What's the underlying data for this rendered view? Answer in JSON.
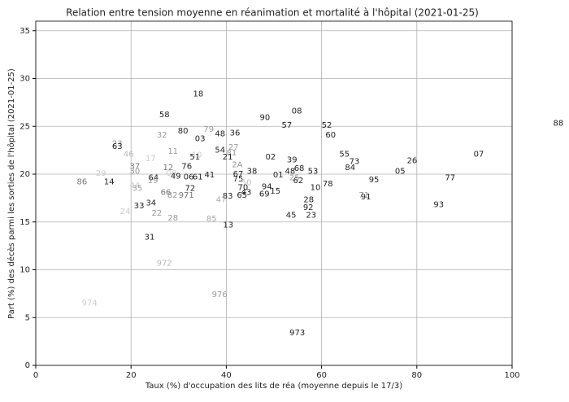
{
  "chart_data": {
    "type": "scatter",
    "title": "Relation entre tension moyenne en réanimation et mortalité à l'hôpital (2021-01-25)",
    "x_label": "Taux (%) d'occupation des lits de réa (moyenne depuis le 17/3)",
    "y_label": "Part (%) des décès parmi les sorties de l'hôpital (2021-01-25)",
    "xlim": [
      0,
      100
    ],
    "ylim": [
      0,
      36
    ],
    "xticks": [
      0,
      20,
      40,
      60,
      80,
      100
    ],
    "yticks": [
      0,
      5,
      10,
      15,
      20,
      25,
      30,
      35
    ],
    "grid": true,
    "labels": [
      "88",
      "18",
      "58",
      "08",
      "90",
      "57",
      "52",
      "60",
      "80",
      "32",
      "79",
      "48",
      "36",
      "03",
      "23",
      "63",
      "46",
      "17",
      "11",
      "54",
      "81",
      "27",
      "10",
      "51",
      "21",
      "02",
      "39",
      "55",
      "73",
      "26",
      "07",
      "2A",
      "37",
      "12",
      "76",
      "84",
      "05",
      "29",
      "30",
      "09",
      "38",
      "48",
      "68",
      "53",
      "64",
      "49",
      "06",
      "61",
      "41",
      "67",
      "01",
      "95",
      "77",
      "86",
      "14",
      "19",
      "75",
      "25",
      "62",
      "78",
      "44",
      "35",
      "50",
      "70",
      "94",
      "10",
      "72",
      "66",
      "82",
      "971",
      "83",
      "65",
      "43",
      "69",
      "15",
      "71",
      "91",
      "47",
      "28",
      "34",
      "33",
      "92",
      "93",
      "24",
      "22",
      "28",
      "85",
      "45",
      "23",
      "13",
      "31",
      "972",
      "974",
      "976",
      "973"
    ],
    "x": [
      109.7,
      34.1,
      27.0,
      54.8,
      48.1,
      52.7,
      61.1,
      61.9,
      30.9,
      26.5,
      36.3,
      38.7,
      41.8,
      34.5,
      17.1,
      17.1,
      19.5,
      24.1,
      28.8,
      38.7,
      41.1,
      41.5,
      33.8,
      33.4,
      40.3,
      49.3,
      53.8,
      64.8,
      66.9,
      79.0,
      93.0,
      42.3,
      20.8,
      27.8,
      31.7,
      66.0,
      76.5,
      13.7,
      20.8,
      28.5,
      45.4,
      53.4,
      55.3,
      58.2,
      24.7,
      29.4,
      32.1,
      34.0,
      36.5,
      42.5,
      50.9,
      71.0,
      87.0,
      9.7,
      15.4,
      24.6,
      42.5,
      54.3,
      55.1,
      61.3,
      20.8,
      21.3,
      44.2,
      43.5,
      48.5,
      58.7,
      32.4,
      27.3,
      28.7,
      31.6,
      40.3,
      43.3,
      44.2,
      48.0,
      50.3,
      68.9,
      69.3,
      38.9,
      57.3,
      24.2,
      21.7,
      57.2,
      84.6,
      18.8,
      25.4,
      28.8,
      36.9,
      53.6,
      57.8,
      40.4,
      23.9,
      27.0,
      11.3,
      38.6,
      54.9
    ],
    "values": [
      25.3,
      28.4,
      26.2,
      26.6,
      25.9,
      25.1,
      25.1,
      24.1,
      24.5,
      24.1,
      24.7,
      24.2,
      24.3,
      23.7,
      23.2,
      22.9,
      22.1,
      21.6,
      22.4,
      22.5,
      22.2,
      22.8,
      22.0,
      21.8,
      21.8,
      21.8,
      21.5,
      22.1,
      21.3,
      21.4,
      22.1,
      21.0,
      20.8,
      20.7,
      20.8,
      20.7,
      20.3,
      20.1,
      20.3,
      20.1,
      20.3,
      20.3,
      20.6,
      20.3,
      19.6,
      19.8,
      19.7,
      19.7,
      19.9,
      20.0,
      19.9,
      19.4,
      19.6,
      19.2,
      19.2,
      19.3,
      19.5,
      19.6,
      19.3,
      19.0,
      18.8,
      18.5,
      19.1,
      18.6,
      18.7,
      18.6,
      18.5,
      18.1,
      17.8,
      17.8,
      17.7,
      17.8,
      18.1,
      17.9,
      18.2,
      17.8,
      17.6,
      17.3,
      17.3,
      17.0,
      16.7,
      16.5,
      16.8,
      16.1,
      15.9,
      15.4,
      15.3,
      15.7,
      15.7,
      14.7,
      13.4,
      10.7,
      6.5,
      7.4,
      3.4
    ],
    "colors": [
      "#222",
      "#222",
      "#222",
      "#222",
      "#222",
      "#222",
      "#222",
      "#222",
      "#222",
      "#999",
      "#999",
      "#222",
      "#222",
      "#222",
      "#999",
      "#222",
      "#bbb",
      "#ccc",
      "#999",
      "#222",
      "#999",
      "#999",
      "#ccc",
      "#222",
      "#222",
      "#222",
      "#222",
      "#222",
      "#222",
      "#222",
      "#222",
      "#999",
      "#777",
      "#777",
      "#222",
      "#222",
      "#222",
      "#ccc",
      "#999",
      "#ccc",
      "#222",
      "#222",
      "#222",
      "#222",
      "#222",
      "#222",
      "#222",
      "#222",
      "#222",
      "#222",
      "#222",
      "#222",
      "#222",
      "#777",
      "#222",
      "#999",
      "#222",
      "#999",
      "#222",
      "#222",
      "#ccc",
      "#999",
      "#bbb",
      "#222",
      "#222",
      "#222",
      "#222",
      "#777",
      "#999",
      "#777",
      "#222",
      "#222",
      "#222",
      "#222",
      "#222",
      "#999",
      "#222",
      "#aaa",
      "#222",
      "#222",
      "#222",
      "#222",
      "#222",
      "#ccc",
      "#999",
      "#999",
      "#aaa",
      "#222",
      "#222",
      "#222",
      "#222",
      "#bbb",
      "#ccc",
      "#999",
      "#222"
    ]
  }
}
